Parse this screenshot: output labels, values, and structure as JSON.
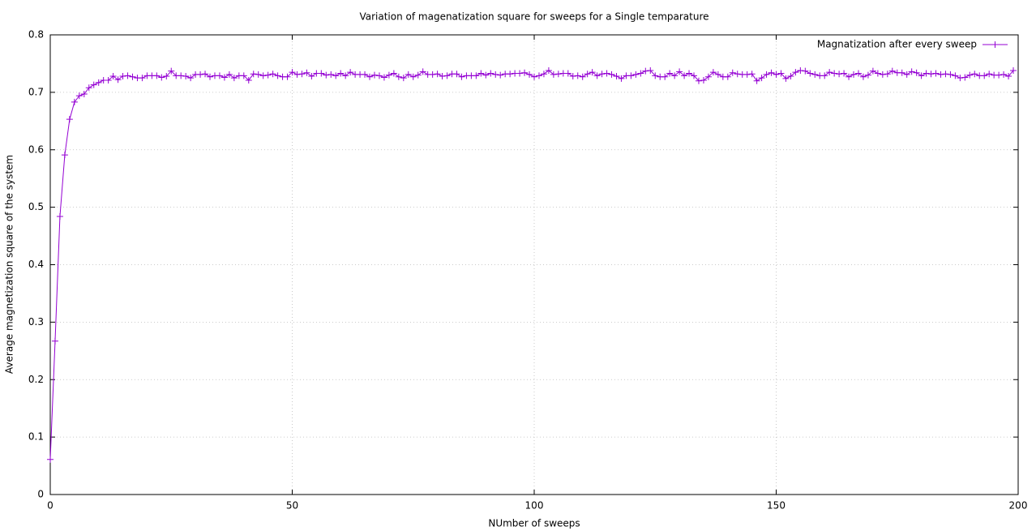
{
  "chart_data": {
    "type": "line",
    "title": "Variation of magenatization square for sweeps for a Single temparature",
    "x_label": "NUmber of sweeps",
    "y_label": "Average magnetization square of the system",
    "x": [
      0,
      1,
      2,
      3,
      4,
      5,
      6,
      7,
      8,
      9,
      10,
      11,
      12,
      13,
      14,
      15,
      16,
      17,
      18,
      19,
      20,
      21,
      22,
      23,
      24,
      25,
      26,
      27,
      28,
      29,
      30,
      31,
      32,
      33,
      34,
      35,
      36,
      37,
      38,
      39,
      40,
      41,
      42,
      43,
      44,
      45,
      46,
      47,
      48,
      49,
      50,
      51,
      52,
      53,
      54,
      55,
      56,
      57,
      58,
      59,
      60,
      61,
      62,
      63,
      64,
      65,
      66,
      67,
      68,
      69,
      70,
      71,
      72,
      73,
      74,
      75,
      76,
      77,
      78,
      79,
      80,
      81,
      82,
      83,
      84,
      85,
      86,
      87,
      88,
      89,
      90,
      91,
      92,
      93,
      94,
      95,
      96,
      97,
      98,
      99,
      100,
      101,
      102,
      103,
      104,
      105,
      106,
      107,
      108,
      109,
      110,
      111,
      112,
      113,
      114,
      115,
      116,
      117,
      118,
      119,
      120,
      121,
      122,
      123,
      124,
      125,
      126,
      127,
      128,
      129,
      130,
      131,
      132,
      133,
      134,
      135,
      136,
      137,
      138,
      139,
      140,
      141,
      142,
      143,
      144,
      145,
      146,
      147,
      148,
      149,
      150,
      151,
      152,
      153,
      154,
      155,
      156,
      157,
      158,
      159,
      160,
      161,
      162,
      163,
      164,
      165,
      166,
      167,
      168,
      169,
      170,
      171,
      172,
      173,
      174,
      175,
      176,
      177,
      178,
      179,
      180,
      181,
      182,
      183,
      184,
      185,
      186,
      187,
      188,
      189,
      190,
      191,
      192,
      193,
      194,
      195,
      196,
      197,
      198,
      199
    ],
    "series": [
      {
        "name": "Magnatization after every sweep",
        "color": "#9400d3",
        "values": [
          0.061,
          0.267,
          0.484,
          0.591,
          0.653,
          0.683,
          0.694,
          0.697,
          0.708,
          0.713,
          0.717,
          0.721,
          0.721,
          0.728,
          0.722,
          0.728,
          0.729,
          0.727,
          0.725,
          0.725,
          0.729,
          0.729,
          0.729,
          0.726,
          0.728,
          0.737,
          0.729,
          0.729,
          0.728,
          0.725,
          0.731,
          0.731,
          0.732,
          0.727,
          0.729,
          0.729,
          0.726,
          0.731,
          0.725,
          0.729,
          0.729,
          0.721,
          0.732,
          0.731,
          0.729,
          0.73,
          0.732,
          0.729,
          0.727,
          0.727,
          0.735,
          0.731,
          0.732,
          0.734,
          0.728,
          0.733,
          0.733,
          0.73,
          0.731,
          0.729,
          0.733,
          0.729,
          0.735,
          0.731,
          0.731,
          0.731,
          0.727,
          0.73,
          0.729,
          0.726,
          0.73,
          0.733,
          0.727,
          0.725,
          0.731,
          0.727,
          0.73,
          0.736,
          0.731,
          0.731,
          0.732,
          0.728,
          0.729,
          0.732,
          0.732,
          0.727,
          0.729,
          0.729,
          0.729,
          0.733,
          0.73,
          0.733,
          0.731,
          0.73,
          0.732,
          0.732,
          0.733,
          0.733,
          0.734,
          0.731,
          0.727,
          0.729,
          0.732,
          0.738,
          0.731,
          0.732,
          0.733,
          0.733,
          0.728,
          0.729,
          0.727,
          0.732,
          0.735,
          0.729,
          0.732,
          0.733,
          0.731,
          0.728,
          0.724,
          0.729,
          0.729,
          0.731,
          0.733,
          0.737,
          0.738,
          0.729,
          0.727,
          0.727,
          0.733,
          0.729,
          0.736,
          0.729,
          0.733,
          0.729,
          0.72,
          0.721,
          0.727,
          0.735,
          0.731,
          0.727,
          0.727,
          0.734,
          0.732,
          0.731,
          0.731,
          0.732,
          0.72,
          0.725,
          0.731,
          0.734,
          0.731,
          0.733,
          0.724,
          0.728,
          0.735,
          0.738,
          0.737,
          0.733,
          0.731,
          0.729,
          0.729,
          0.735,
          0.733,
          0.732,
          0.733,
          0.727,
          0.731,
          0.733,
          0.727,
          0.73,
          0.737,
          0.733,
          0.731,
          0.732,
          0.737,
          0.734,
          0.734,
          0.731,
          0.736,
          0.734,
          0.729,
          0.733,
          0.732,
          0.733,
          0.731,
          0.732,
          0.731,
          0.729,
          0.725,
          0.726,
          0.73,
          0.732,
          0.729,
          0.729,
          0.732,
          0.73,
          0.73,
          0.731,
          0.728,
          0.738
        ]
      }
    ],
    "xlim": [
      0,
      200
    ],
    "xticks": [
      0,
      50,
      100,
      150,
      200
    ],
    "ylim": [
      0,
      0.8
    ],
    "yticks": [
      0,
      0.1,
      0.2,
      0.3,
      0.4,
      0.5,
      0.6,
      0.7,
      0.8
    ],
    "grid": true,
    "legend": "top right",
    "marker": "plus"
  }
}
